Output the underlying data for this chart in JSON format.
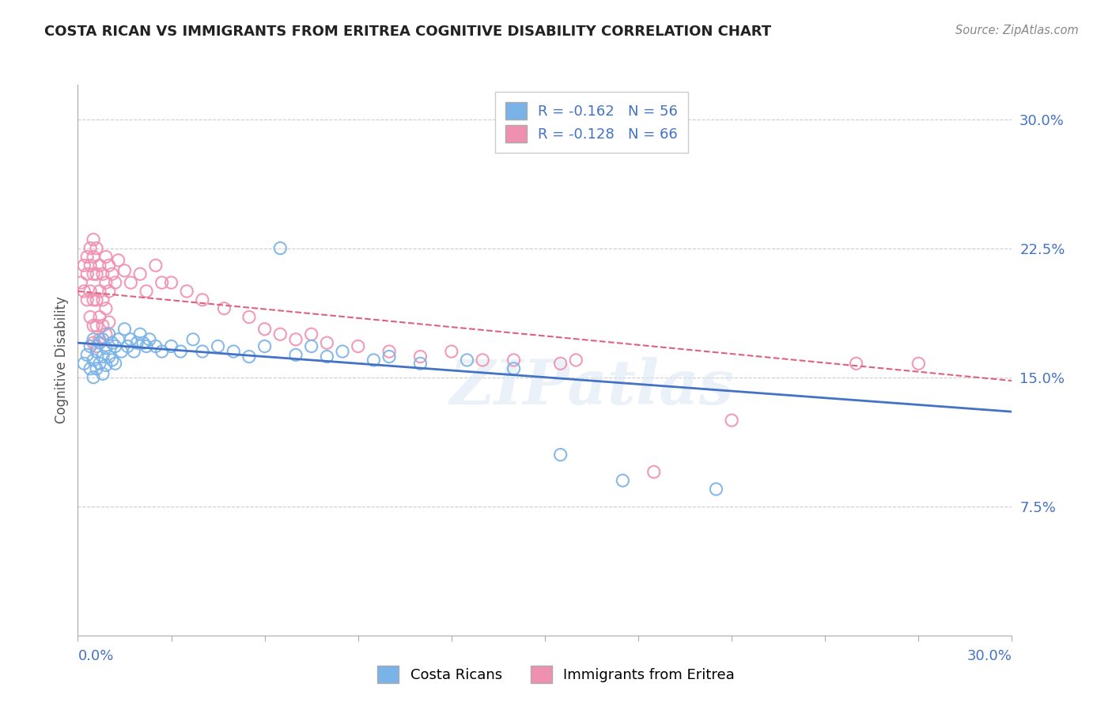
{
  "title": "COSTA RICAN VS IMMIGRANTS FROM ERITREA COGNITIVE DISABILITY CORRELATION CHART",
  "source": "Source: ZipAtlas.com",
  "ylabel": "Cognitive Disability",
  "xlim": [
    0.0,
    0.3
  ],
  "ylim": [
    0.0,
    0.32
  ],
  "legend_entries": [
    {
      "label": "R = -0.162   N = 56",
      "color": "#a8c8f0"
    },
    {
      "label": "R = -0.128   N = 66",
      "color": "#f0a8c0"
    }
  ],
  "costa_rica_scatter": [
    [
      0.002,
      0.158
    ],
    [
      0.003,
      0.163
    ],
    [
      0.004,
      0.168
    ],
    [
      0.004,
      0.155
    ],
    [
      0.005,
      0.172
    ],
    [
      0.005,
      0.16
    ],
    [
      0.005,
      0.15
    ],
    [
      0.006,
      0.165
    ],
    [
      0.006,
      0.155
    ],
    [
      0.007,
      0.17
    ],
    [
      0.007,
      0.158
    ],
    [
      0.008,
      0.172
    ],
    [
      0.008,
      0.162
    ],
    [
      0.008,
      0.152
    ],
    [
      0.009,
      0.167
    ],
    [
      0.009,
      0.157
    ],
    [
      0.01,
      0.175
    ],
    [
      0.01,
      0.162
    ],
    [
      0.011,
      0.17
    ],
    [
      0.011,
      0.16
    ],
    [
      0.012,
      0.168
    ],
    [
      0.012,
      0.158
    ],
    [
      0.013,
      0.172
    ],
    [
      0.014,
      0.165
    ],
    [
      0.015,
      0.178
    ],
    [
      0.016,
      0.168
    ],
    [
      0.017,
      0.172
    ],
    [
      0.018,
      0.165
    ],
    [
      0.019,
      0.17
    ],
    [
      0.02,
      0.175
    ],
    [
      0.021,
      0.17
    ],
    [
      0.022,
      0.168
    ],
    [
      0.023,
      0.172
    ],
    [
      0.025,
      0.168
    ],
    [
      0.027,
      0.165
    ],
    [
      0.03,
      0.168
    ],
    [
      0.033,
      0.165
    ],
    [
      0.037,
      0.172
    ],
    [
      0.04,
      0.165
    ],
    [
      0.045,
      0.168
    ],
    [
      0.05,
      0.165
    ],
    [
      0.055,
      0.162
    ],
    [
      0.06,
      0.168
    ],
    [
      0.065,
      0.225
    ],
    [
      0.07,
      0.163
    ],
    [
      0.075,
      0.168
    ],
    [
      0.08,
      0.162
    ],
    [
      0.085,
      0.165
    ],
    [
      0.095,
      0.16
    ],
    [
      0.1,
      0.162
    ],
    [
      0.11,
      0.158
    ],
    [
      0.125,
      0.16
    ],
    [
      0.14,
      0.155
    ],
    [
      0.155,
      0.105
    ],
    [
      0.175,
      0.09
    ],
    [
      0.205,
      0.085
    ]
  ],
  "eritrea_scatter": [
    [
      0.001,
      0.205
    ],
    [
      0.002,
      0.215
    ],
    [
      0.002,
      0.2
    ],
    [
      0.003,
      0.22
    ],
    [
      0.003,
      0.21
    ],
    [
      0.003,
      0.195
    ],
    [
      0.004,
      0.225
    ],
    [
      0.004,
      0.215
    ],
    [
      0.004,
      0.2
    ],
    [
      0.004,
      0.185
    ],
    [
      0.005,
      0.23
    ],
    [
      0.005,
      0.22
    ],
    [
      0.005,
      0.21
    ],
    [
      0.005,
      0.195
    ],
    [
      0.005,
      0.18
    ],
    [
      0.005,
      0.17
    ],
    [
      0.006,
      0.225
    ],
    [
      0.006,
      0.21
    ],
    [
      0.006,
      0.195
    ],
    [
      0.006,
      0.18
    ],
    [
      0.006,
      0.168
    ],
    [
      0.007,
      0.215
    ],
    [
      0.007,
      0.2
    ],
    [
      0.007,
      0.185
    ],
    [
      0.007,
      0.172
    ],
    [
      0.008,
      0.21
    ],
    [
      0.008,
      0.195
    ],
    [
      0.008,
      0.18
    ],
    [
      0.009,
      0.22
    ],
    [
      0.009,
      0.205
    ],
    [
      0.009,
      0.19
    ],
    [
      0.009,
      0.175
    ],
    [
      0.01,
      0.215
    ],
    [
      0.01,
      0.2
    ],
    [
      0.01,
      0.182
    ],
    [
      0.011,
      0.21
    ],
    [
      0.012,
      0.205
    ],
    [
      0.013,
      0.218
    ],
    [
      0.015,
      0.212
    ],
    [
      0.017,
      0.205
    ],
    [
      0.02,
      0.21
    ],
    [
      0.022,
      0.2
    ],
    [
      0.025,
      0.215
    ],
    [
      0.027,
      0.205
    ],
    [
      0.03,
      0.205
    ],
    [
      0.035,
      0.2
    ],
    [
      0.04,
      0.195
    ],
    [
      0.047,
      0.19
    ],
    [
      0.055,
      0.185
    ],
    [
      0.06,
      0.178
    ],
    [
      0.065,
      0.175
    ],
    [
      0.07,
      0.172
    ],
    [
      0.075,
      0.175
    ],
    [
      0.08,
      0.17
    ],
    [
      0.09,
      0.168
    ],
    [
      0.1,
      0.165
    ],
    [
      0.11,
      0.162
    ],
    [
      0.12,
      0.165
    ],
    [
      0.13,
      0.16
    ],
    [
      0.14,
      0.16
    ],
    [
      0.155,
      0.158
    ],
    [
      0.16,
      0.16
    ],
    [
      0.185,
      0.095
    ],
    [
      0.21,
      0.125
    ],
    [
      0.25,
      0.158
    ],
    [
      0.27,
      0.158
    ]
  ],
  "costa_rica_line_x": [
    0.0,
    0.3
  ],
  "costa_rica_line_y": [
    0.17,
    0.13
  ],
  "eritrea_line_x": [
    0.0,
    0.3
  ],
  "eritrea_line_y": [
    0.2,
    0.148
  ],
  "scatter_color_cr": "#7ab3e8",
  "scatter_color_er": "#f090b0",
  "line_color_cr": "#4472c4",
  "line_color_er": "#e06080",
  "watermark": "ZIPatlas",
  "grid_color": "#cccccc",
  "title_color": "#222222",
  "axis_label_color": "#4472c4",
  "tick_label_color": "#4472c4"
}
